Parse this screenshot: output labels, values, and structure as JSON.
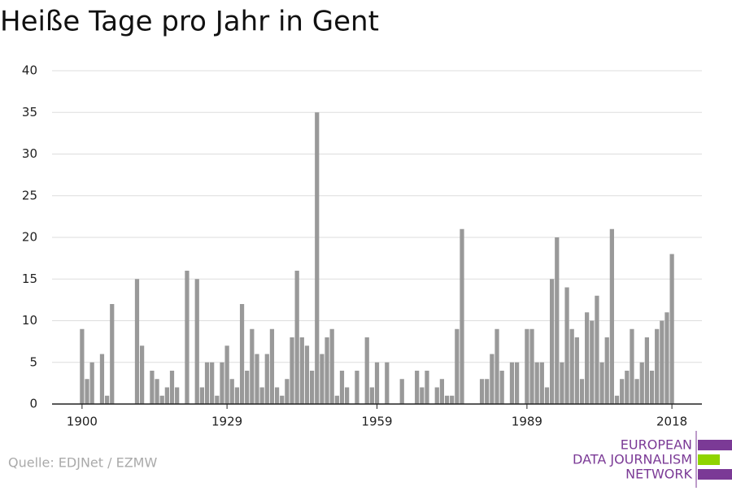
{
  "chart_data": {
    "type": "bar",
    "title": "Heiße Tage pro Jahr in Gent",
    "source": "Quelle: EDJNet / EZMW",
    "logo": [
      "EUROPEAN",
      "DATA JOURNALISM",
      "NETWORK"
    ],
    "color": "#999999",
    "grid": true,
    "x": [
      1900,
      1901,
      1902,
      1903,
      1904,
      1905,
      1906,
      1907,
      1908,
      1909,
      1910,
      1911,
      1912,
      1913,
      1914,
      1915,
      1916,
      1917,
      1918,
      1919,
      1920,
      1921,
      1922,
      1923,
      1924,
      1925,
      1926,
      1927,
      1928,
      1929,
      1930,
      1931,
      1932,
      1933,
      1934,
      1935,
      1936,
      1937,
      1938,
      1939,
      1940,
      1941,
      1942,
      1943,
      1944,
      1945,
      1946,
      1947,
      1948,
      1949,
      1950,
      1951,
      1952,
      1953,
      1954,
      1955,
      1956,
      1957,
      1958,
      1959,
      1960,
      1961,
      1962,
      1963,
      1964,
      1965,
      1966,
      1967,
      1968,
      1969,
      1970,
      1971,
      1972,
      1973,
      1974,
      1975,
      1976,
      1977,
      1978,
      1979,
      1980,
      1981,
      1982,
      1983,
      1984,
      1985,
      1986,
      1987,
      1988,
      1989,
      1990,
      1991,
      1992,
      1993,
      1994,
      1995,
      1996,
      1997,
      1998,
      1999,
      2000,
      2001,
      2002,
      2003,
      2004,
      2005,
      2006,
      2007,
      2008,
      2009,
      2010,
      2011,
      2012,
      2013,
      2014,
      2015,
      2016,
      2017,
      2018
    ],
    "values": [
      9,
      3,
      5,
      0,
      6,
      1,
      12,
      0,
      0,
      0,
      0,
      15,
      7,
      0,
      4,
      3,
      1,
      2,
      4,
      2,
      0,
      16,
      0,
      15,
      2,
      5,
      5,
      1,
      5,
      7,
      3,
      2,
      12,
      4,
      9,
      6,
      2,
      6,
      9,
      2,
      1,
      3,
      8,
      16,
      8,
      7,
      4,
      35,
      6,
      8,
      9,
      1,
      4,
      2,
      0,
      4,
      0,
      8,
      2,
      5,
      0,
      5,
      0,
      0,
      3,
      0,
      0,
      4,
      2,
      4,
      0,
      2,
      3,
      1,
      1,
      9,
      21,
      0,
      0,
      0,
      3,
      3,
      6,
      9,
      4,
      0,
      5,
      5,
      0,
      9,
      9,
      5,
      5,
      2,
      15,
      20,
      5,
      14,
      9,
      8,
      3,
      11,
      10,
      13,
      5,
      8,
      21,
      1,
      3,
      4,
      9,
      3,
      5,
      8,
      4,
      9,
      10,
      11,
      18
    ],
    "xlim": [
      1894,
      2024
    ],
    "xticks": [
      1900,
      1929,
      1959,
      1989,
      2018
    ],
    "ylim": [
      0,
      40
    ],
    "yticks": [
      0,
      5,
      10,
      15,
      20,
      25,
      30,
      35,
      40
    ]
  }
}
